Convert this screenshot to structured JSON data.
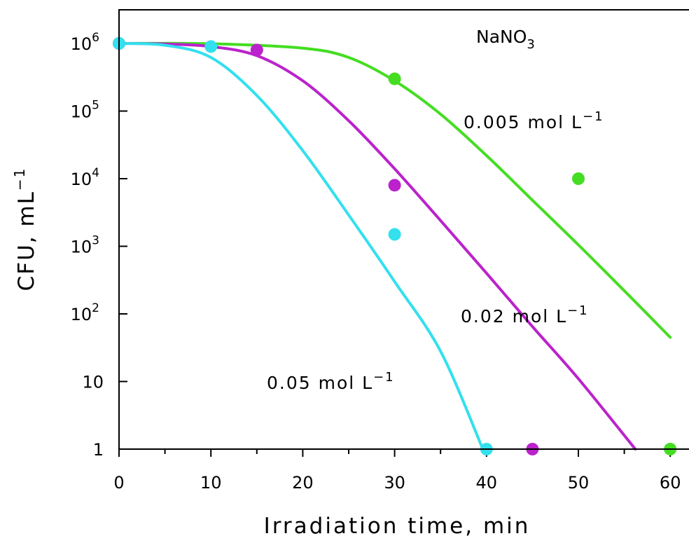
{
  "chart_data": {
    "type": "line",
    "title": "",
    "xlabel": "Irradiation time, min",
    "ylabel": "CFU, mL",
    "ylabel_superscript": "−1",
    "yscale": "log",
    "xlim": [
      0,
      62
    ],
    "ylim_log10": [
      0,
      6.5
    ],
    "grid": false,
    "x_ticks": [
      "0",
      "10",
      "20",
      "30",
      "40",
      "50",
      "60"
    ],
    "y_ticks": [
      {
        "log": 0,
        "base": "1",
        "exp": ""
      },
      {
        "log": 1,
        "base": "10",
        "exp": ""
      },
      {
        "log": 2,
        "base": "10",
        "exp": "2"
      },
      {
        "log": 3,
        "base": "10",
        "exp": "3"
      },
      {
        "log": 4,
        "base": "10",
        "exp": "4"
      },
      {
        "log": 5,
        "base": "10",
        "exp": "5"
      },
      {
        "log": 6,
        "base": "10",
        "exp": "6"
      }
    ],
    "header_annotation": {
      "text": "NaNO",
      "subscript": "3"
    },
    "series": [
      {
        "name": "0.005 mol L",
        "name_superscript": "−1",
        "color": "#44dd22",
        "points": [
          {
            "x": 0,
            "y": 1000000
          },
          {
            "x": 30,
            "y": 300000
          },
          {
            "x": 50,
            "y": 10000
          },
          {
            "x": 60,
            "y": 1
          }
        ],
        "fit": [
          {
            "x": 0,
            "y": 1000000
          },
          {
            "x": 10,
            "y": 990000
          },
          {
            "x": 20,
            "y": 850000
          },
          {
            "x": 25,
            "y": 620000
          },
          {
            "x": 30,
            "y": 280000
          },
          {
            "x": 35,
            "y": 90000
          },
          {
            "x": 40,
            "y": 22000
          },
          {
            "x": 45,
            "y": 4800
          },
          {
            "x": 50,
            "y": 1050
          },
          {
            "x": 55,
            "y": 220
          },
          {
            "x": 60,
            "y": 45
          }
        ]
      },
      {
        "name": "0.02 mol L",
        "name_superscript": "−1",
        "color": "#bb22cc",
        "points": [
          {
            "x": 0,
            "y": 1000000
          },
          {
            "x": 15,
            "y": 800000
          },
          {
            "x": 30,
            "y": 8000
          },
          {
            "x": 45,
            "y": 1
          }
        ],
        "fit": [
          {
            "x": 0,
            "y": 1000000
          },
          {
            "x": 5,
            "y": 980000
          },
          {
            "x": 10,
            "y": 900000
          },
          {
            "x": 15,
            "y": 660000
          },
          {
            "x": 20,
            "y": 280000
          },
          {
            "x": 25,
            "y": 72000
          },
          {
            "x": 30,
            "y": 14000
          },
          {
            "x": 35,
            "y": 2400
          },
          {
            "x": 40,
            "y": 400
          },
          {
            "x": 45,
            "y": 65
          },
          {
            "x": 50,
            "y": 11
          },
          {
            "x": 56.2,
            "y": 1
          }
        ]
      },
      {
        "name": "0.05 mol L",
        "name_superscript": "−1",
        "color": "#33e0ee",
        "points": [
          {
            "x": 0,
            "y": 1000000
          },
          {
            "x": 10,
            "y": 900000
          },
          {
            "x": 30,
            "y": 1500
          },
          {
            "x": 40,
            "y": 1
          }
        ],
        "fit": [
          {
            "x": 0,
            "y": 1000000
          },
          {
            "x": 5,
            "y": 940000
          },
          {
            "x": 10,
            "y": 620000
          },
          {
            "x": 15,
            "y": 170000
          },
          {
            "x": 20,
            "y": 26000
          },
          {
            "x": 25,
            "y": 2900
          },
          {
            "x": 30,
            "y": 300
          },
          {
            "x": 35,
            "y": 28
          },
          {
            "x": 39.6,
            "y": 1
          }
        ]
      }
    ]
  }
}
